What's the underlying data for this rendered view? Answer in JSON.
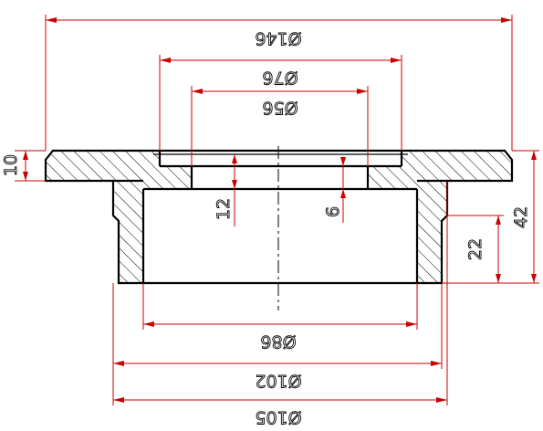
{
  "colors": {
    "dimension_line": "#cc0000",
    "outline": "#000000",
    "background": "#ffffff"
  },
  "dimensions": {
    "d146": "Ø146",
    "d76": "Ø76",
    "d56": "Ø56",
    "d86": "Ø86",
    "d102": "Ø102",
    "d105": "Ø105",
    "h10": "10",
    "h12": "12",
    "h6": "6",
    "h22": "22",
    "h42": "42"
  }
}
